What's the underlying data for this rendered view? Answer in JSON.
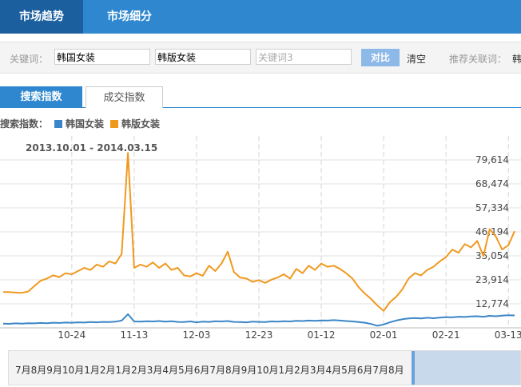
{
  "tabs": [
    "市场趋势",
    "市场细分"
  ],
  "search": {
    "label": "关键词：",
    "inputs": [
      "韩国女装",
      "韩版女装"
    ],
    "placeholder": "关键词3",
    "compare": "对比",
    "clear": "清空",
    "related": "推荐关联词：",
    "related_word": "韩"
  },
  "subtabs": [
    "搜索指数",
    "成交指数"
  ],
  "legend_label": "搜索指数：",
  "chart_data": {
    "type": "line",
    "subtitle": "2013.10.01 - 2014.03.15",
    "categories": [
      null,
      null,
      null,
      null,
      null,
      null,
      null,
      null,
      null,
      null,
      null,
      "10-24",
      null,
      null,
      null,
      null,
      null,
      null,
      null,
      null,
      null,
      "11-13",
      null,
      null,
      null,
      null,
      null,
      null,
      null,
      null,
      null,
      "12-03",
      null,
      null,
      null,
      null,
      null,
      null,
      null,
      null,
      null,
      "12-23",
      null,
      null,
      null,
      null,
      null,
      null,
      null,
      null,
      null,
      "01-12",
      null,
      null,
      null,
      null,
      null,
      null,
      null,
      null,
      null,
      "02-01",
      null,
      null,
      null,
      null,
      null,
      null,
      null,
      null,
      null,
      "02-21",
      null,
      null,
      null,
      null,
      null,
      null,
      null,
      null,
      null,
      "03-13",
      null
    ],
    "series": [
      {
        "name": "韩国女装",
        "color": "#3b86c8",
        "values": [
          3600,
          3500,
          3700,
          3600,
          3800,
          3700,
          3900,
          3800,
          4000,
          3900,
          4100,
          4000,
          4200,
          4100,
          4300,
          4200,
          4400,
          4300,
          4500,
          5000,
          8000,
          4600,
          4500,
          4700,
          4600,
          4800,
          4500,
          4700,
          4400,
          4300,
          4600,
          4200,
          4500,
          4400,
          4700,
          4600,
          4800,
          4400,
          4300,
          4200,
          4500,
          4400,
          4300,
          4600,
          4500,
          4700,
          4600,
          4900,
          4800,
          5000,
          4900,
          5100,
          5000,
          5200,
          5000,
          4800,
          4600,
          4300,
          4000,
          3400,
          2600,
          3200,
          4200,
          5000,
          5600,
          6000,
          6200,
          6000,
          6300,
          6100,
          6400,
          6600,
          6500,
          6800,
          6700,
          6900,
          7000,
          6800,
          7200,
          7000,
          7300,
          7500,
          7400
        ]
      },
      {
        "name": "韩版女装",
        "color": "#f0991f",
        "values": [
          18300,
          18200,
          18000,
          17900,
          18500,
          21000,
          23500,
          24500,
          26000,
          25200,
          27000,
          26500,
          28000,
          29500,
          28500,
          31000,
          30000,
          32500,
          31500,
          36000,
          82900,
          29500,
          31000,
          30000,
          32000,
          29500,
          31500,
          28500,
          29500,
          26000,
          25500,
          27000,
          25800,
          30500,
          28000,
          31500,
          37000,
          27500,
          25000,
          24500,
          23000,
          23800,
          22500,
          24000,
          25000,
          26500,
          24500,
          29000,
          27000,
          30500,
          28500,
          31500,
          30000,
          30500,
          29000,
          27000,
          24500,
          20500,
          17500,
          15000,
          12000,
          9500,
          13500,
          16000,
          19500,
          24500,
          27000,
          26000,
          28500,
          30000,
          32500,
          34500,
          38000,
          36500,
          40500,
          39000,
          42000,
          35000,
          47500,
          44000,
          38000,
          40000,
          46500
        ]
      }
    ],
    "ylim": [
      1634,
      90754
    ],
    "yticks": [
      {
        "value": 12774,
        "label": "12,774"
      },
      {
        "value": 23914,
        "label": "23,914"
      },
      {
        "value": 35054,
        "label": "35,054"
      },
      {
        "value": 46194,
        "label": "46,194"
      },
      {
        "value": 57334,
        "label": "57,334"
      },
      {
        "value": 68474,
        "label": "68,474"
      },
      {
        "value": 79614,
        "label": "79,614"
      }
    ],
    "grid": true
  },
  "navigator": [
    "7月",
    "8月",
    "9月",
    "10月",
    "1月",
    "2月",
    "1月",
    "2月",
    "3月",
    "4月",
    "5月",
    "6月",
    "7月",
    "8月",
    "9月",
    "10月",
    "1月",
    "2月",
    "3月",
    "4月",
    "5月",
    "6月",
    "7月",
    "8月"
  ]
}
